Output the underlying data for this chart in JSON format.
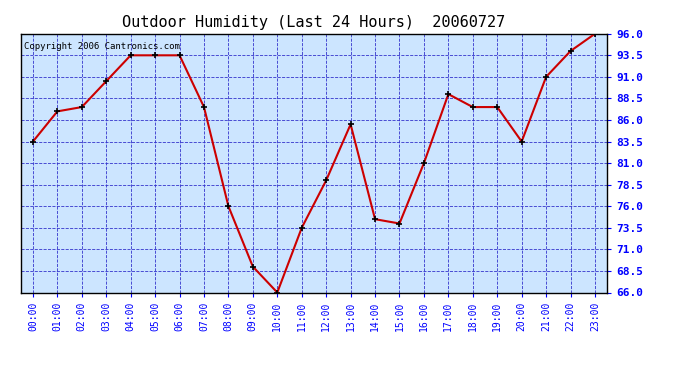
{
  "title": "Outdoor Humidity (Last 24 Hours)  20060727",
  "copyright": "Copyright 2006 Cantronics.com",
  "hours": [
    0,
    1,
    2,
    3,
    4,
    5,
    6,
    7,
    8,
    9,
    10,
    11,
    12,
    13,
    14,
    15,
    16,
    17,
    18,
    19,
    20,
    21,
    22,
    23
  ],
  "humidity": [
    83.5,
    87.0,
    87.5,
    90.5,
    93.5,
    93.5,
    93.5,
    87.5,
    76.0,
    69.0,
    66.0,
    73.5,
    79.0,
    85.5,
    74.5,
    74.0,
    81.0,
    89.0,
    87.5,
    87.5,
    83.5,
    91.0,
    94.0,
    96.0
  ],
  "xlim": [
    -0.5,
    23.5
  ],
  "ylim": [
    66.0,
    96.0
  ],
  "yticks": [
    66.0,
    68.5,
    71.0,
    73.5,
    76.0,
    78.5,
    81.0,
    83.5,
    86.0,
    88.5,
    91.0,
    93.5,
    96.0
  ],
  "ytick_labels": [
    "66.0",
    "68.5",
    "71.0",
    "73.5",
    "76.0",
    "78.5",
    "81.0",
    "83.5",
    "86.0",
    "88.5",
    "91.0",
    "93.5",
    "96.0"
  ],
  "bg_color": "#cce5ff",
  "outer_bg": "#ffffff",
  "line_color": "#cc0000",
  "marker_color": "#000000",
  "grid_color": "#3333cc",
  "title_fontsize": 11,
  "copyright_fontsize": 6.5,
  "tick_fontsize": 7,
  "ytick_fontsize": 8
}
